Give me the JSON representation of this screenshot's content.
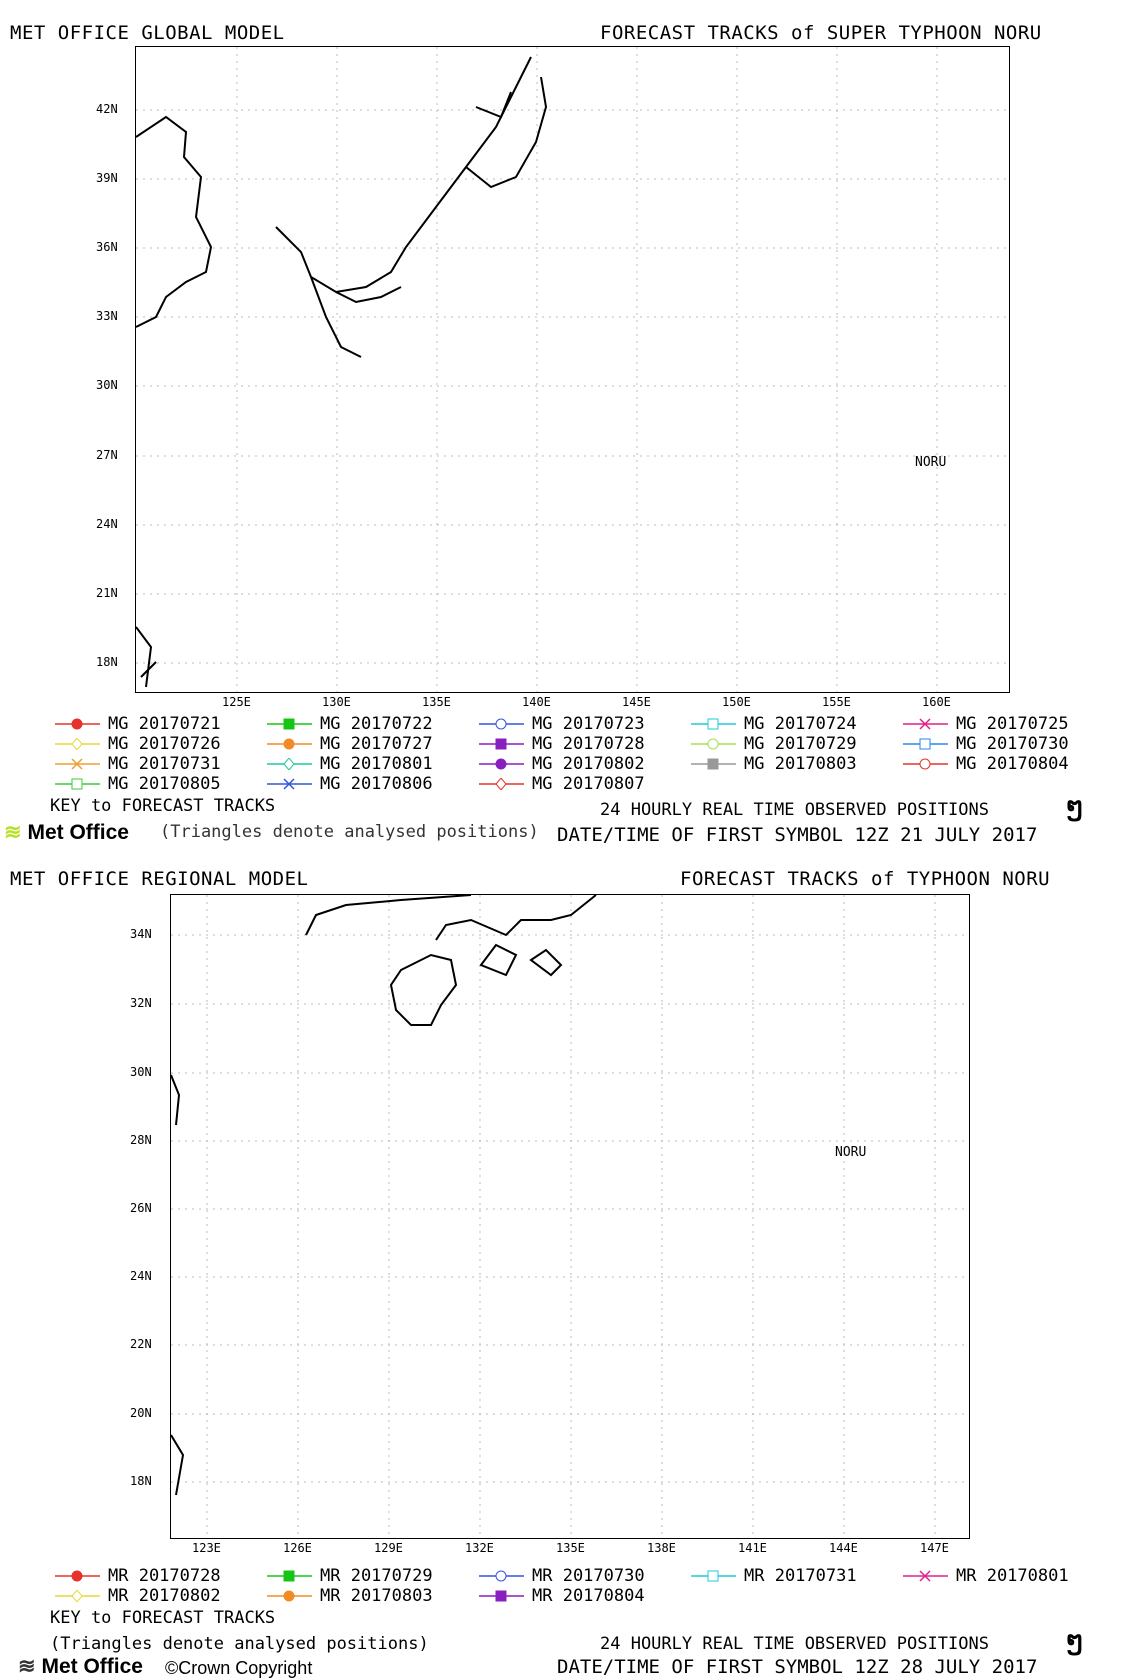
{
  "global": {
    "header_left": "MET OFFICE GLOBAL MODEL",
    "header_right": "FORECAST TRACKS of SUPER TYPHOON NORU",
    "lat_labels": [
      "42N",
      "39N",
      "36N",
      "33N",
      "30N",
      "27N",
      "24N",
      "21N",
      "18N"
    ],
    "lon_labels": [
      "125E",
      "130E",
      "135E",
      "140E",
      "145E",
      "150E",
      "155E",
      "160E"
    ],
    "storm_label": "NORU",
    "legend": [
      {
        "label": "MG 20170721",
        "color": "#e8302a",
        "marker": "circle-filled"
      },
      {
        "label": "MG 20170722",
        "color": "#15c515",
        "marker": "square-filled"
      },
      {
        "label": "MG 20170723",
        "color": "#3355e0",
        "marker": "circle-open"
      },
      {
        "label": "MG 20170724",
        "color": "#22c8d8",
        "marker": "square-open"
      },
      {
        "label": "MG 20170725",
        "color": "#e0208a",
        "marker": "x"
      },
      {
        "label": "MG 20170726",
        "color": "#e8d83a",
        "marker": "diamond-open"
      },
      {
        "label": "MG 20170727",
        "color": "#f28a26",
        "marker": "circle-filled"
      },
      {
        "label": "MG 20170728",
        "color": "#8a1fbf",
        "marker": "square-filled"
      },
      {
        "label": "MG 20170729",
        "color": "#a6e04a",
        "marker": "circle-open"
      },
      {
        "label": "MG 20170730",
        "color": "#2a8ae8",
        "marker": "square-open"
      },
      {
        "label": "MG 20170731",
        "color": "#f0a030",
        "marker": "x"
      },
      {
        "label": "MG 20170801",
        "color": "#1fc89a",
        "marker": "diamond-open"
      },
      {
        "label": "MG 20170802",
        "color": "#8a1fbf",
        "marker": "circle-filled"
      },
      {
        "label": "MG 20170803",
        "color": "#999999",
        "marker": "square-filled"
      },
      {
        "label": "MG 20170804",
        "color": "#e8302a",
        "marker": "circle-open"
      },
      {
        "label": "MG 20170805",
        "color": "#3ccc3c",
        "marker": "square-open"
      },
      {
        "label": "MG 20170806",
        "color": "#3355e0",
        "marker": "x"
      },
      {
        "label": "MG 20170807",
        "color": "#e8302a",
        "marker": "diamond-open"
      }
    ],
    "key_label": "KEY to FORECAST TRACKS",
    "triangle_note": "(Triangles denote analysed positions)",
    "observed_label": "24 HOURLY REAL TIME OBSERVED POSITIONS",
    "first_symbol": "DATE/TIME OF FIRST SYMBOL 12Z 21 JULY 2017"
  },
  "regional": {
    "header_left": "MET OFFICE REGIONAL MODEL",
    "header_right": "FORECAST TRACKS of TYPHOON NORU",
    "lat_labels": [
      "34N",
      "32N",
      "30N",
      "28N",
      "26N",
      "24N",
      "22N",
      "20N",
      "18N"
    ],
    "lon_labels": [
      "123E",
      "126E",
      "129E",
      "132E",
      "135E",
      "138E",
      "141E",
      "144E",
      "147E"
    ],
    "storm_label": "NORU",
    "legend": [
      {
        "label": "MR 20170728",
        "color": "#e8302a",
        "marker": "circle-filled"
      },
      {
        "label": "MR 20170729",
        "color": "#15c515",
        "marker": "square-filled"
      },
      {
        "label": "MR 20170730",
        "color": "#3355e0",
        "marker": "circle-open"
      },
      {
        "label": "MR 20170731",
        "color": "#22c8d8",
        "marker": "square-open"
      },
      {
        "label": "MR 20170801",
        "color": "#e0208a",
        "marker": "x"
      },
      {
        "label": "MR 20170802",
        "color": "#e8d83a",
        "marker": "diamond-open"
      },
      {
        "label": "MR 20170803",
        "color": "#f28a26",
        "marker": "circle-filled"
      },
      {
        "label": "MR 20170804",
        "color": "#8a1fbf",
        "marker": "square-filled"
      }
    ],
    "key_label": "KEY to FORECAST TRACKS",
    "triangle_note": "(Triangles denote analysed positions)",
    "observed_label": "24 HOURLY REAL TIME OBSERVED POSITIONS",
    "first_symbol": "DATE/TIME OF FIRST SYMBOL 12Z 28 JULY 2017"
  },
  "branding": {
    "logo_text": "Met Office",
    "copyright": "©Crown Copyright",
    "logo_color": "#b6e02a"
  }
}
